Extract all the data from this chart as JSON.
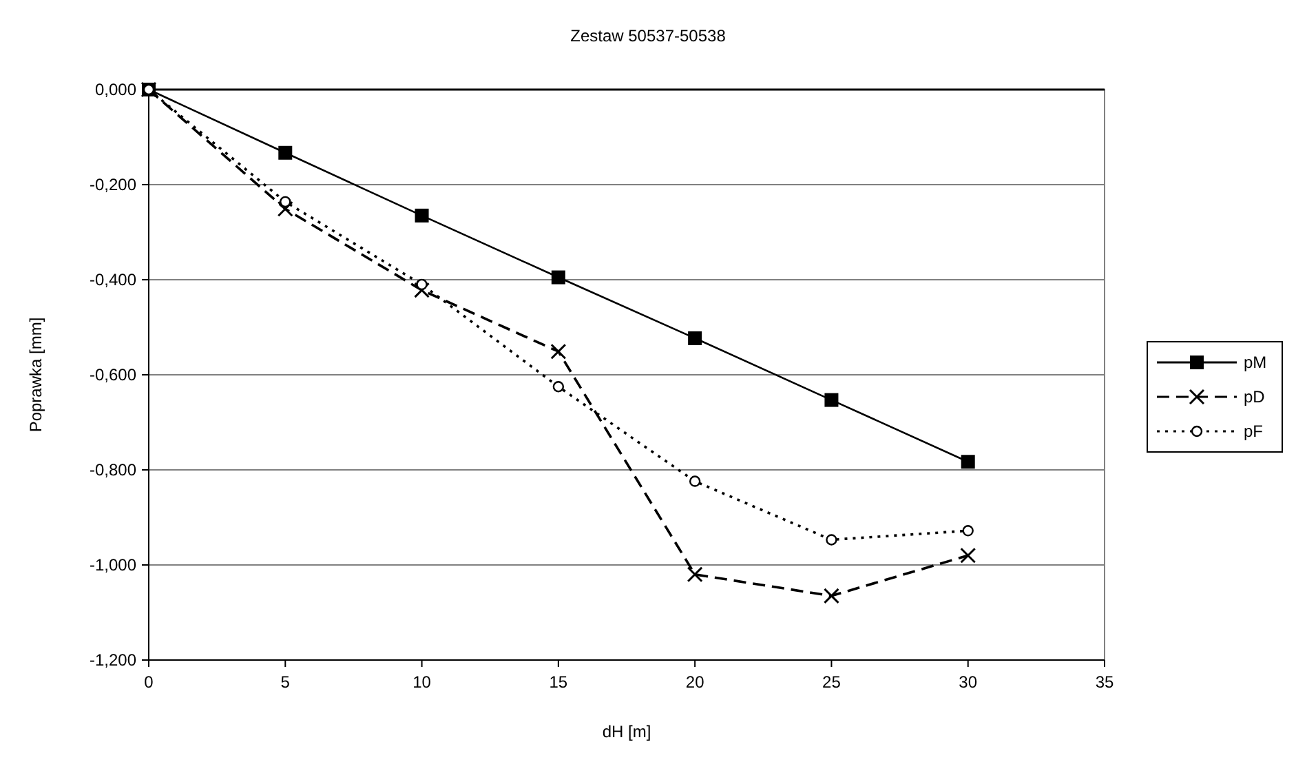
{
  "chart_data": {
    "type": "line",
    "title": "Zestaw 50537-50538",
    "xlabel": "dH [m]",
    "ylabel": "Poprawka [mm]",
    "x": [
      0,
      5,
      10,
      15,
      20,
      25,
      30
    ],
    "series": [
      {
        "name": "pM",
        "color": "#000000",
        "marker": "square",
        "line_style": "solid",
        "values": [
          0,
          -0.133,
          -0.265,
          -0.395,
          -0.523,
          -0.653,
          -0.783
        ]
      },
      {
        "name": "pD",
        "color": "#000000",
        "marker": "cross",
        "line_style": "dashed",
        "values": [
          0,
          -0.251,
          -0.422,
          -0.551,
          -1.02,
          -1.065,
          -0.98
        ]
      },
      {
        "name": "pF",
        "color": "#000000",
        "marker": "circle",
        "line_style": "dotted",
        "values": [
          0,
          -0.236,
          -0.41,
          -0.625,
          -0.824,
          -0.947,
          -0.928
        ]
      }
    ],
    "xlim": [
      0,
      35
    ],
    "xticks": [
      0,
      5,
      10,
      15,
      20,
      25,
      30,
      35
    ],
    "ylim": [
      -1.2,
      0
    ],
    "yticks": [
      {
        "value": 0,
        "label": "0,000"
      },
      {
        "value": -0.2,
        "label": "-0,200"
      },
      {
        "value": -0.4,
        "label": "-0,400"
      },
      {
        "value": -0.6,
        "label": "-0,600"
      },
      {
        "value": -0.8,
        "label": "-0,800"
      },
      {
        "value": -1,
        "label": "-1,000"
      },
      {
        "value": -1.2,
        "label": "-1,200"
      }
    ],
    "grid": "y",
    "legend": "right"
  }
}
